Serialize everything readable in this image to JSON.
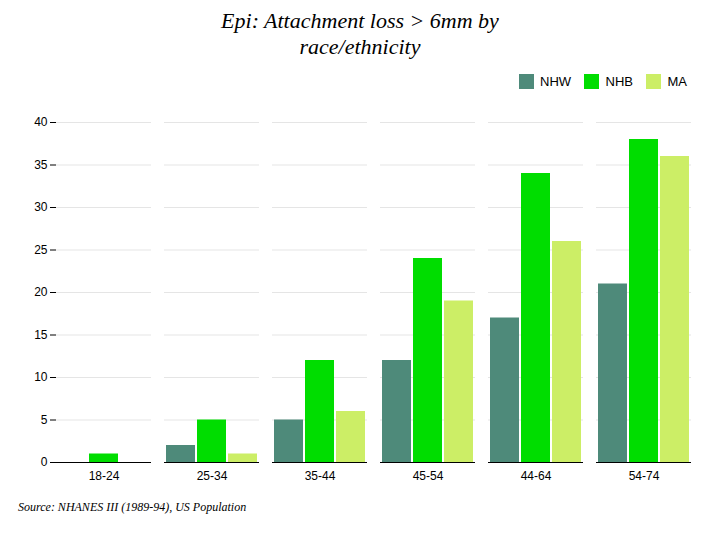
{
  "chart_data": {
    "type": "bar",
    "title": "Epi: Attachment loss > 6mm by\nrace/ethnicity",
    "source": "Source: NHANES III (1989-94), US Population",
    "categories": [
      "18-24",
      "25-34",
      "35-44",
      "45-54",
      "44-64",
      "54-74"
    ],
    "series": [
      {
        "name": "NHW",
        "color": "#4E8A7A",
        "values": [
          0,
          2,
          5,
          12,
          17,
          21
        ]
      },
      {
        "name": "NHB",
        "color": "#00DD00",
        "values": [
          1,
          5,
          12,
          24,
          34,
          38
        ]
      },
      {
        "name": "MA",
        "color": "#CCEE66",
        "values": [
          0,
          1,
          6,
          19,
          26,
          36
        ]
      }
    ],
    "ylim": [
      0,
      40
    ],
    "yticks": [
      0,
      5,
      10,
      15,
      20,
      25,
      30,
      35,
      40
    ],
    "grid": true,
    "legend": "upper right"
  }
}
